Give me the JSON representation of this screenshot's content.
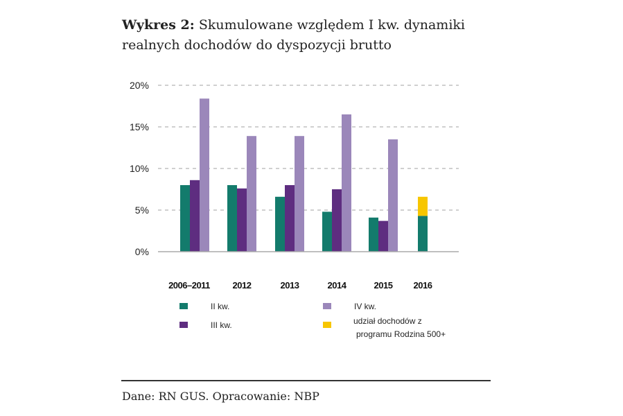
{
  "header": {
    "label": "Wykres 2:",
    "title": "Skumulowane względem I kw. dynamiki realnych dochodów do dyspozycji brutto"
  },
  "footer": {
    "source": "Dane: RN GUS. Opracowanie: NBP"
  },
  "chart_data": {
    "type": "bar",
    "title": "",
    "xlabel": "",
    "ylabel": "",
    "ylim": [
      0,
      20
    ],
    "yticks": [
      0,
      5,
      10,
      15,
      20
    ],
    "ytick_labels": [
      "0%",
      "5%",
      "10%",
      "15%",
      "20%"
    ],
    "grid": "horizontal dashed",
    "legend_placement": "bottom",
    "categories": [
      "2006–2011",
      "2012",
      "2013",
      "2014",
      "2015",
      "2016"
    ],
    "series": [
      {
        "name": "II kw.",
        "color": "#137b6c",
        "values": [
          8.0,
          8.0,
          6.6,
          4.8,
          4.1,
          4.3
        ]
      },
      {
        "name": "III kw.",
        "color": "#5e2d80",
        "values": [
          8.6,
          7.6,
          8.0,
          7.5,
          3.7,
          null
        ]
      },
      {
        "name": "IV kw.",
        "color": "#9b87ba",
        "values": [
          18.4,
          13.9,
          13.9,
          16.5,
          13.5,
          null
        ]
      },
      {
        "name": "udział dochodów z programu Rodzina 500+",
        "color": "#f7c600",
        "values": [
          null,
          null,
          null,
          null,
          null,
          2.3
        ],
        "stacked_on": "II kw."
      }
    ]
  }
}
